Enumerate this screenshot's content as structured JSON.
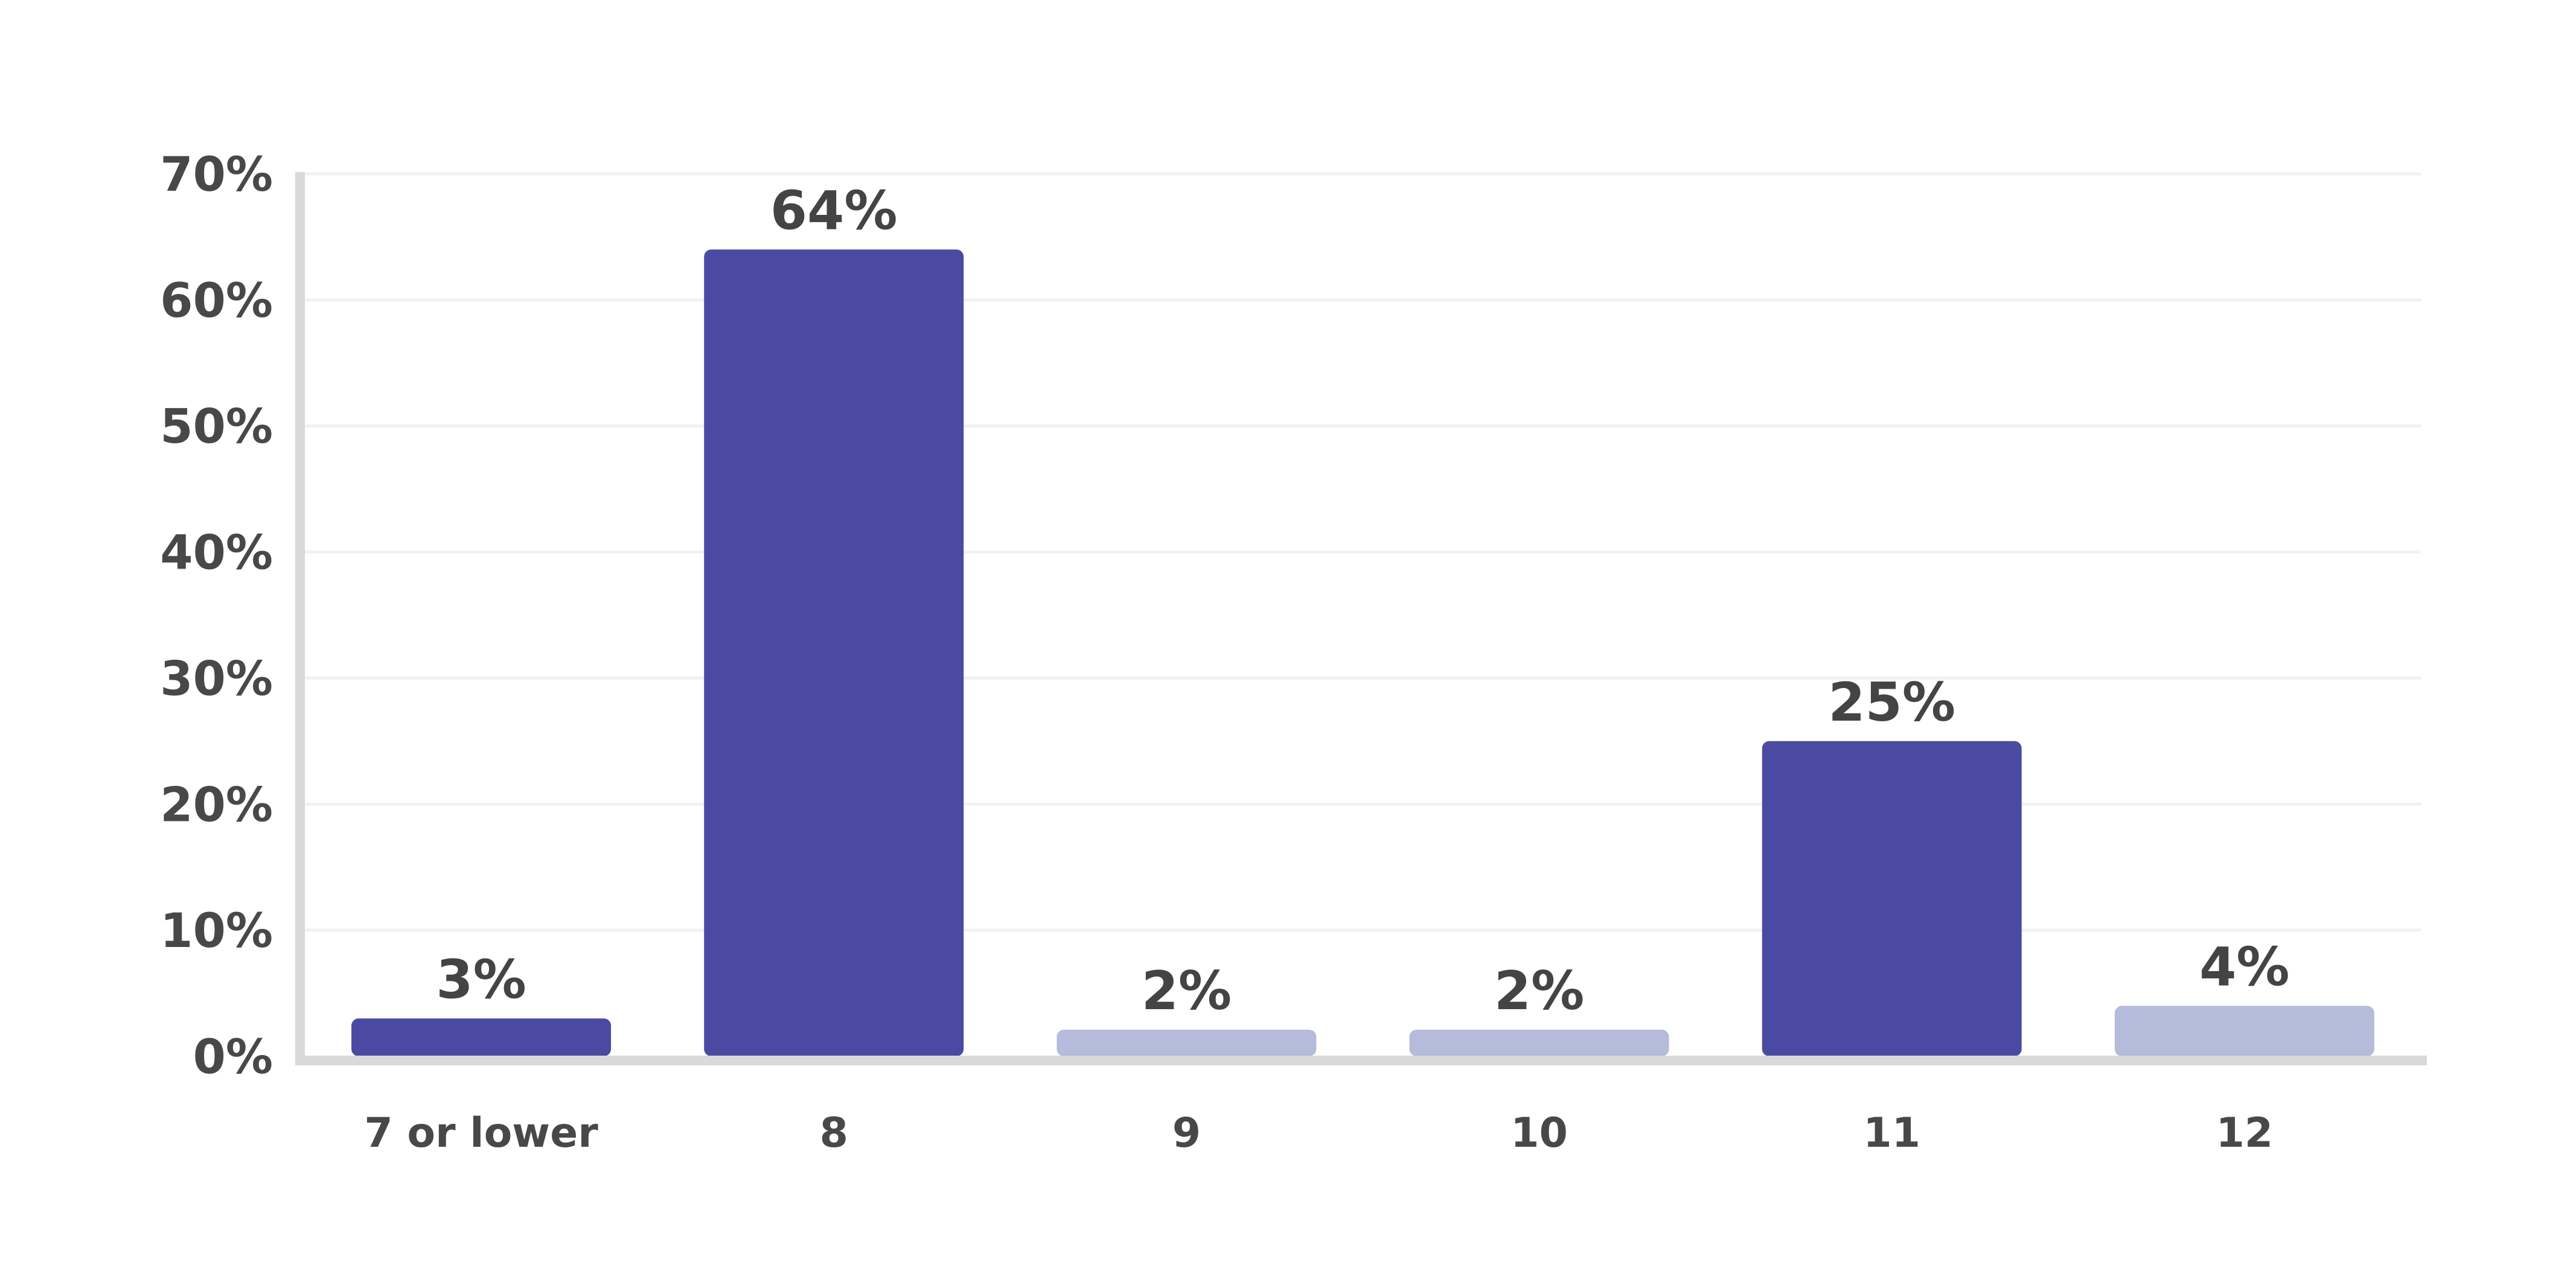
{
  "chart_data": {
    "type": "bar",
    "categories": [
      "7 or lower",
      "8",
      "9",
      "10",
      "11",
      "12"
    ],
    "values": [
      3,
      64,
      2,
      2,
      25,
      4
    ],
    "data_labels": [
      "3%",
      "64%",
      "2%",
      "2%",
      "25%",
      "4%"
    ],
    "bar_colors": [
      "#4b4aa3",
      "#4b4aa3",
      "#b5bbdb",
      "#b5bbdb",
      "#4b4aa3",
      "#b5bbdb"
    ],
    "y_ticks": [
      0,
      10,
      20,
      30,
      40,
      50,
      60,
      70
    ],
    "y_tick_labels": [
      "0%",
      "10%",
      "20%",
      "30%",
      "40%",
      "50%",
      "60%",
      "70%"
    ],
    "ylim": [
      0,
      70
    ],
    "grid": true,
    "legend": false,
    "title": "",
    "xlabel": "",
    "ylabel": ""
  }
}
